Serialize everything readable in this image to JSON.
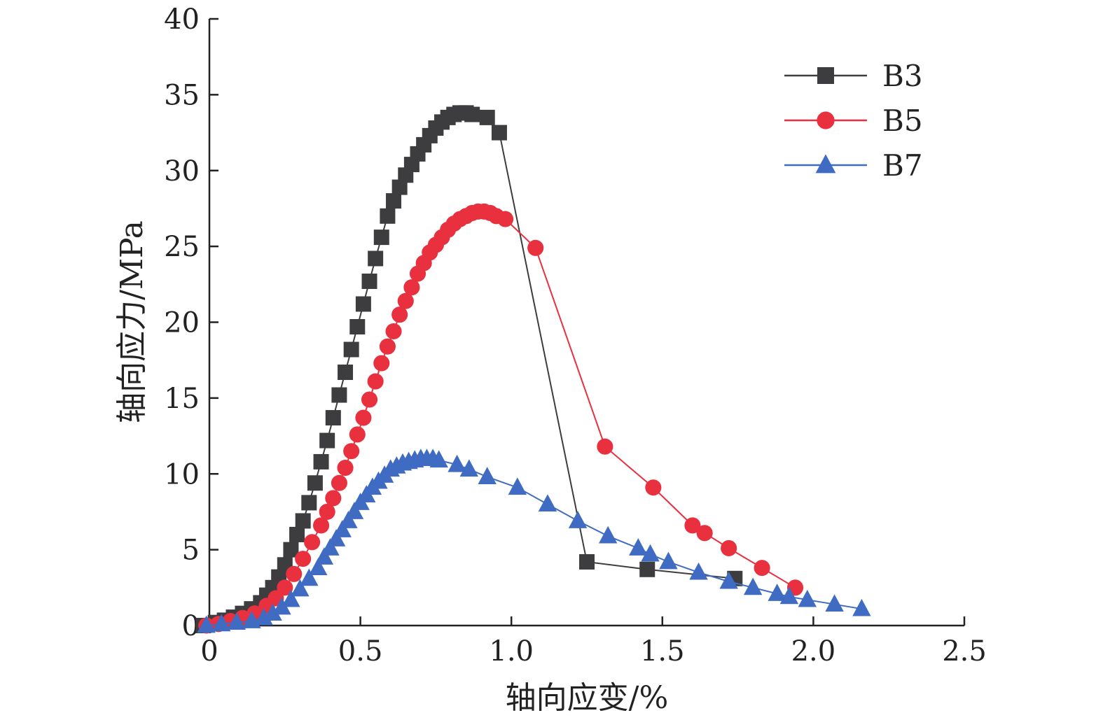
{
  "chart_data": {
    "type": "line",
    "title": "",
    "xlabel": "轴向应变/%",
    "ylabel": "轴向应力/MPa",
    "xlim": [
      0,
      2.5
    ],
    "ylim": [
      0,
      40
    ],
    "x_ticks": [
      0,
      0.5,
      1.0,
      1.5,
      2.0,
      2.5
    ],
    "x_tick_labels": [
      "0",
      "0.5",
      "1.0",
      "1.5",
      "2.0",
      "2.5"
    ],
    "y_ticks": [
      0,
      5,
      10,
      15,
      20,
      25,
      30,
      35,
      40
    ],
    "y_tick_labels": [
      "0",
      "5",
      "10",
      "15",
      "20",
      "25",
      "30",
      "35",
      "40"
    ],
    "grid": false,
    "legend_position": "top-right",
    "series": [
      {
        "name": "B3",
        "color": "#3d3d3f",
        "marker": "square",
        "points": [
          [
            -0.02,
            0.0
          ],
          [
            0.02,
            0.2
          ],
          [
            0.05,
            0.35
          ],
          [
            0.08,
            0.55
          ],
          [
            0.11,
            0.8
          ],
          [
            0.14,
            1.1
          ],
          [
            0.17,
            1.5
          ],
          [
            0.19,
            2.0
          ],
          [
            0.21,
            2.5
          ],
          [
            0.23,
            3.2
          ],
          [
            0.25,
            4.0
          ],
          [
            0.27,
            5.0
          ],
          [
            0.29,
            6.0
          ],
          [
            0.31,
            6.9
          ],
          [
            0.33,
            8.1
          ],
          [
            0.35,
            9.4
          ],
          [
            0.37,
            10.8
          ],
          [
            0.39,
            12.2
          ],
          [
            0.41,
            13.7
          ],
          [
            0.43,
            15.2
          ],
          [
            0.45,
            16.7
          ],
          [
            0.47,
            18.2
          ],
          [
            0.49,
            19.7
          ],
          [
            0.51,
            21.2
          ],
          [
            0.53,
            22.7
          ],
          [
            0.55,
            24.2
          ],
          [
            0.57,
            25.6
          ],
          [
            0.59,
            27.0
          ],
          [
            0.61,
            28.0
          ],
          [
            0.63,
            28.9
          ],
          [
            0.65,
            29.7
          ],
          [
            0.67,
            30.4
          ],
          [
            0.69,
            31.1
          ],
          [
            0.71,
            31.7
          ],
          [
            0.73,
            32.3
          ],
          [
            0.75,
            32.8
          ],
          [
            0.77,
            33.2
          ],
          [
            0.79,
            33.5
          ],
          [
            0.81,
            33.7
          ],
          [
            0.83,
            33.8
          ],
          [
            0.85,
            33.8
          ],
          [
            0.87,
            33.7
          ],
          [
            0.92,
            33.5
          ],
          [
            0.96,
            32.5
          ],
          [
            1.25,
            4.2
          ],
          [
            1.45,
            3.7
          ],
          [
            1.74,
            3.1
          ]
        ]
      },
      {
        "name": "B5",
        "color": "#e8303f",
        "marker": "circle",
        "points": [
          [
            -0.01,
            0.0
          ],
          [
            0.03,
            0.1
          ],
          [
            0.07,
            0.3
          ],
          [
            0.11,
            0.5
          ],
          [
            0.15,
            0.8
          ],
          [
            0.19,
            1.3
          ],
          [
            0.22,
            1.8
          ],
          [
            0.25,
            2.5
          ],
          [
            0.28,
            3.4
          ],
          [
            0.31,
            4.4
          ],
          [
            0.34,
            5.5
          ],
          [
            0.37,
            6.6
          ],
          [
            0.39,
            7.5
          ],
          [
            0.41,
            8.4
          ],
          [
            0.43,
            9.4
          ],
          [
            0.45,
            10.4
          ],
          [
            0.47,
            11.5
          ],
          [
            0.49,
            12.6
          ],
          [
            0.51,
            13.7
          ],
          [
            0.53,
            14.9
          ],
          [
            0.55,
            16.1
          ],
          [
            0.57,
            17.3
          ],
          [
            0.59,
            18.4
          ],
          [
            0.61,
            19.4
          ],
          [
            0.63,
            20.5
          ],
          [
            0.65,
            21.4
          ],
          [
            0.67,
            22.3
          ],
          [
            0.69,
            23.2
          ],
          [
            0.71,
            23.9
          ],
          [
            0.73,
            24.6
          ],
          [
            0.75,
            25.1
          ],
          [
            0.77,
            25.6
          ],
          [
            0.79,
            26.1
          ],
          [
            0.81,
            26.5
          ],
          [
            0.83,
            26.8
          ],
          [
            0.85,
            27.0
          ],
          [
            0.87,
            27.2
          ],
          [
            0.89,
            27.3
          ],
          [
            0.91,
            27.3
          ],
          [
            0.93,
            27.2
          ],
          [
            0.95,
            27.0
          ],
          [
            0.98,
            26.8
          ],
          [
            1.08,
            24.9
          ],
          [
            1.31,
            11.8
          ],
          [
            1.47,
            9.1
          ],
          [
            1.6,
            6.6
          ],
          [
            1.64,
            6.1
          ],
          [
            1.72,
            5.1
          ],
          [
            1.83,
            3.8
          ],
          [
            1.94,
            2.5
          ]
        ]
      },
      {
        "name": "B7",
        "color": "#3f6cc2",
        "marker": "triangle",
        "points": [
          [
            -0.01,
            0.0
          ],
          [
            0.04,
            0.1
          ],
          [
            0.09,
            0.2
          ],
          [
            0.14,
            0.3
          ],
          [
            0.18,
            0.5
          ],
          [
            0.21,
            0.8
          ],
          [
            0.24,
            1.2
          ],
          [
            0.27,
            1.7
          ],
          [
            0.3,
            2.4
          ],
          [
            0.33,
            3.1
          ],
          [
            0.36,
            3.8
          ],
          [
            0.38,
            4.5
          ],
          [
            0.4,
            5.1
          ],
          [
            0.42,
            5.7
          ],
          [
            0.44,
            6.3
          ],
          [
            0.46,
            6.9
          ],
          [
            0.48,
            7.5
          ],
          [
            0.5,
            8.1
          ],
          [
            0.52,
            8.6
          ],
          [
            0.54,
            9.1
          ],
          [
            0.56,
            9.5
          ],
          [
            0.58,
            9.9
          ],
          [
            0.6,
            10.3
          ],
          [
            0.62,
            10.5
          ],
          [
            0.64,
            10.7
          ],
          [
            0.66,
            10.8
          ],
          [
            0.68,
            10.9
          ],
          [
            0.7,
            11.0
          ],
          [
            0.72,
            11.0
          ],
          [
            0.74,
            11.0
          ],
          [
            0.76,
            10.9
          ],
          [
            0.82,
            10.6
          ],
          [
            0.86,
            10.3
          ],
          [
            0.92,
            9.8
          ],
          [
            1.02,
            9.1
          ],
          [
            1.12,
            8.0
          ],
          [
            1.22,
            6.9
          ],
          [
            1.32,
            5.9
          ],
          [
            1.42,
            5.1
          ],
          [
            1.46,
            4.7
          ],
          [
            1.52,
            4.2
          ],
          [
            1.62,
            3.5
          ],
          [
            1.72,
            2.9
          ],
          [
            1.8,
            2.5
          ],
          [
            1.88,
            2.1
          ],
          [
            1.92,
            1.9
          ],
          [
            1.98,
            1.7
          ],
          [
            2.07,
            1.4
          ],
          [
            2.16,
            1.1
          ]
        ]
      }
    ]
  }
}
